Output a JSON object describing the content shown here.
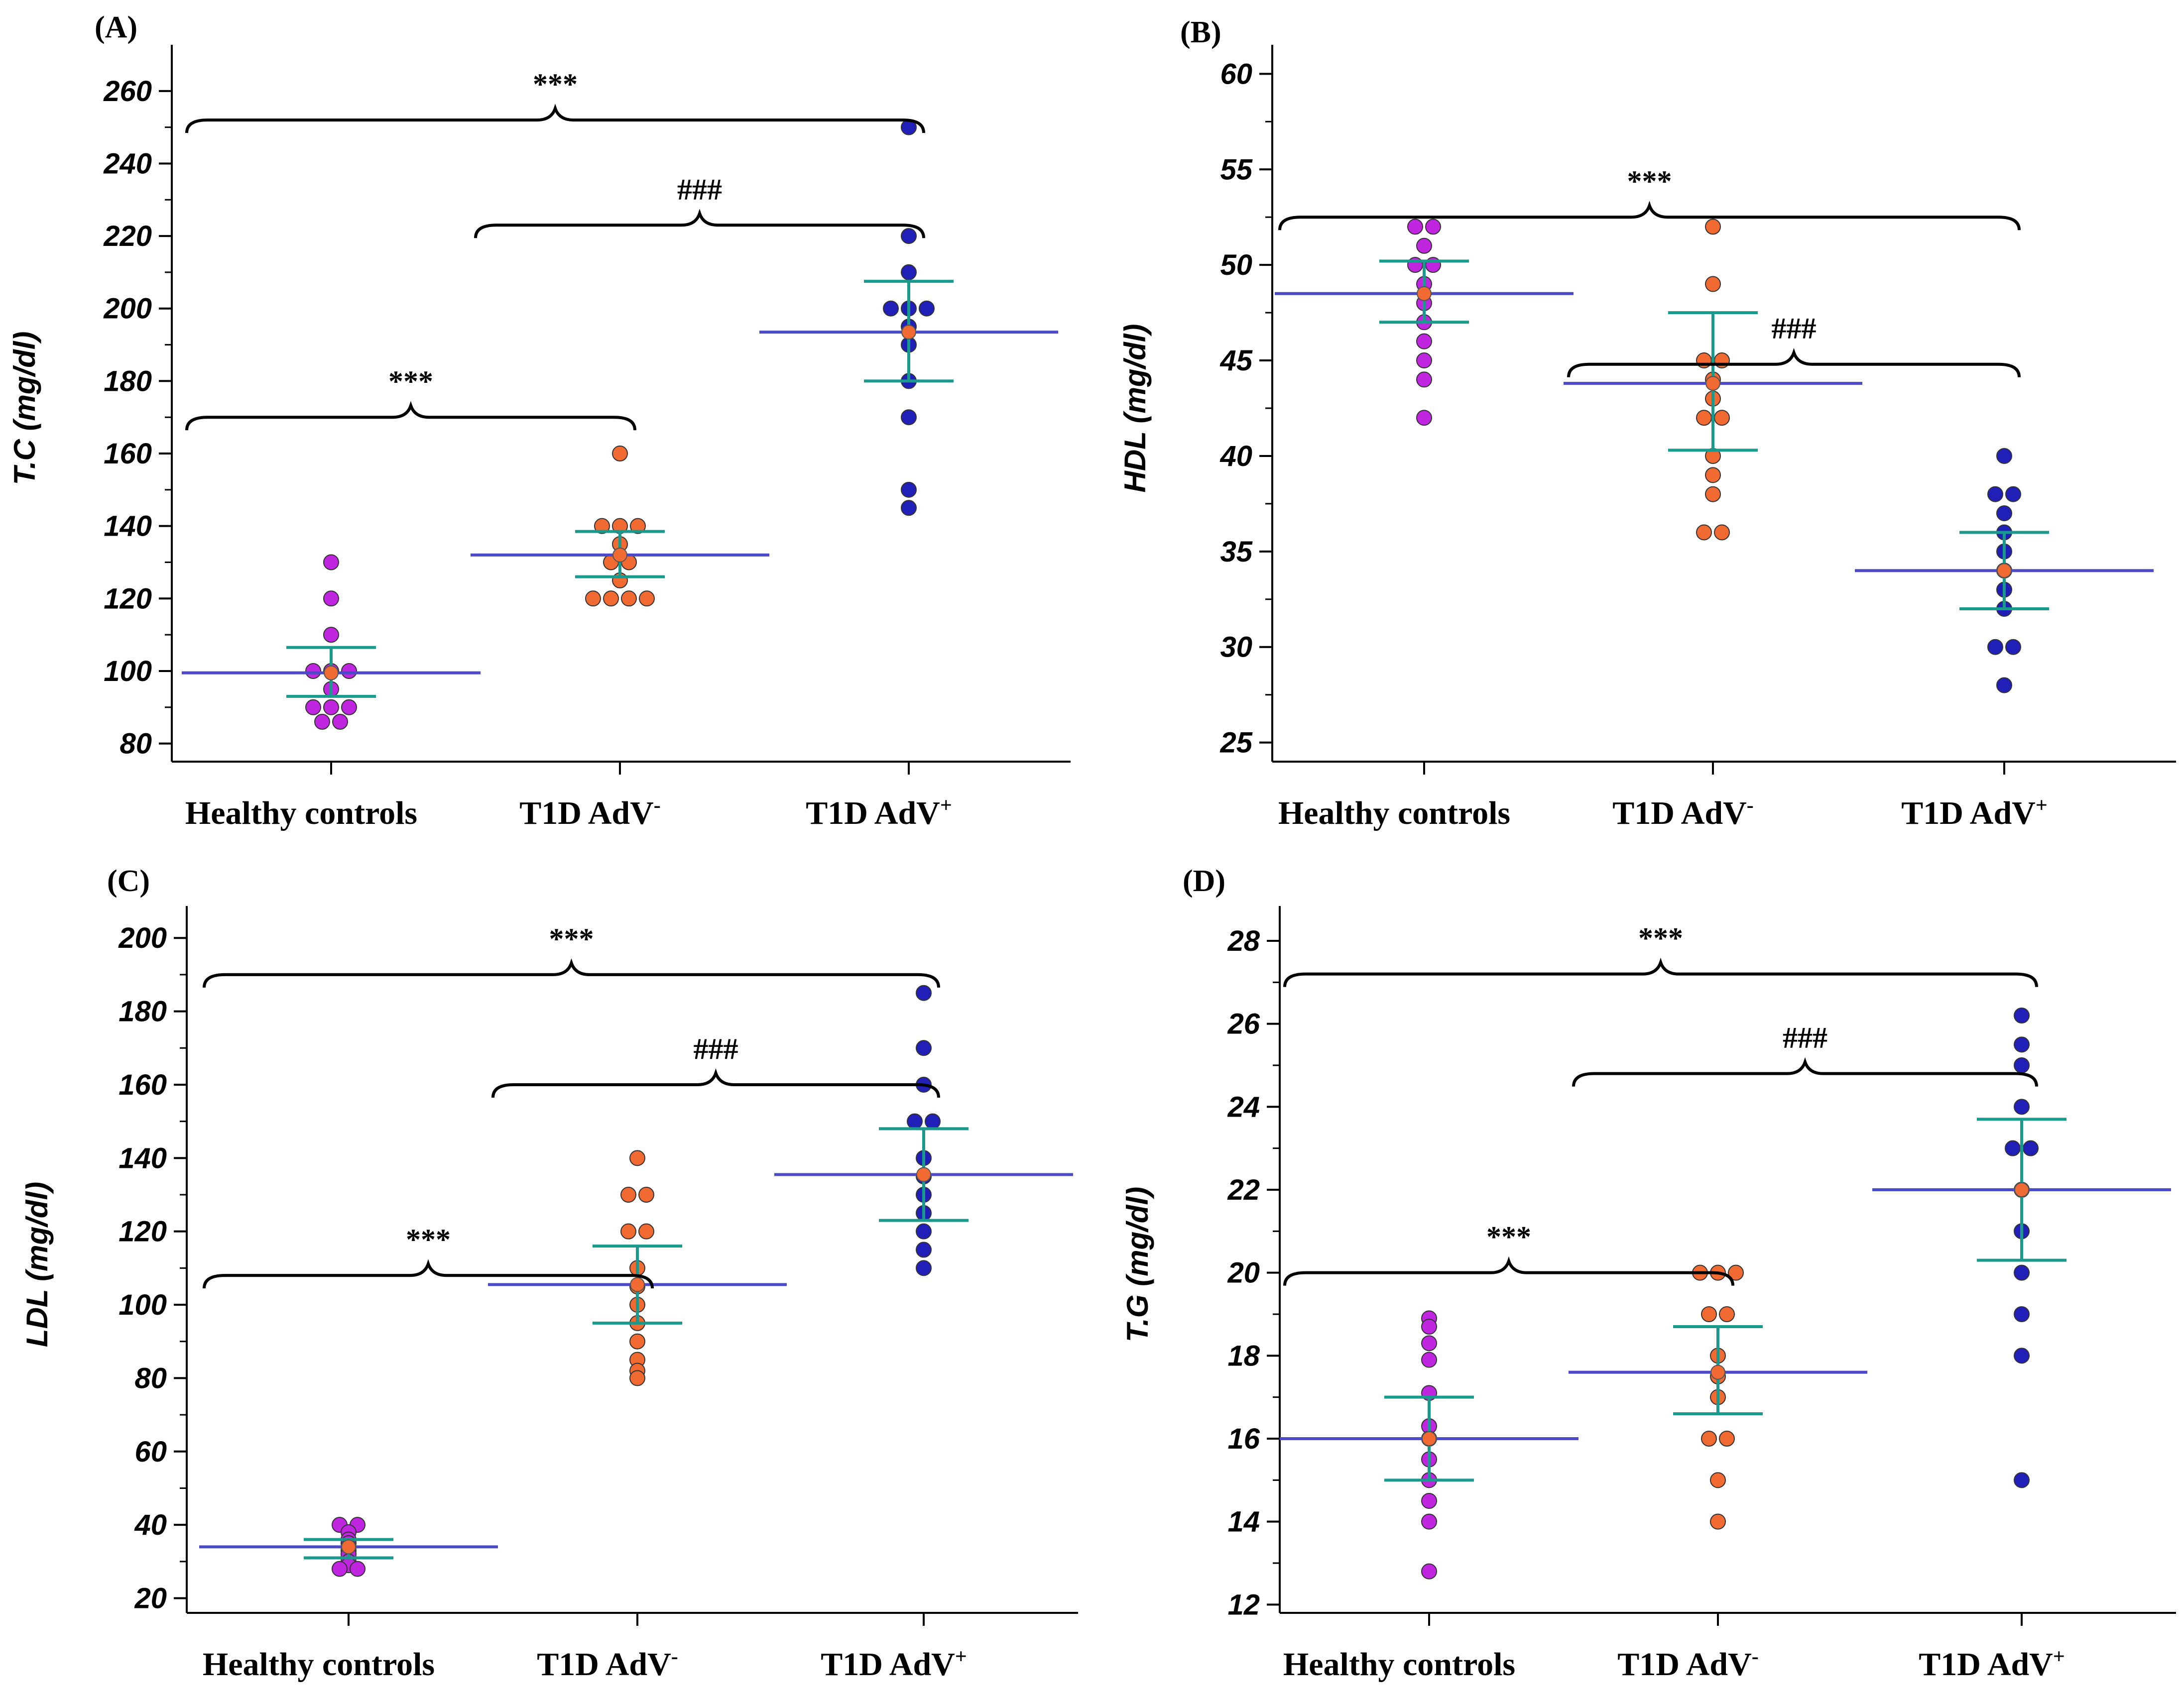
{
  "chart_data": [
    {
      "type": "scatter",
      "panel": "(A)",
      "ylabel": "T.C (mg/dl)",
      "ylim": [
        75,
        270
      ],
      "yticks": [
        80,
        100,
        120,
        140,
        160,
        180,
        200,
        220,
        240,
        260
      ],
      "categories": [
        "Healthy controls",
        "T1D AdV",
        "T1D AdV"
      ],
      "category_superscripts": [
        "",
        "-",
        "+"
      ],
      "groups": [
        {
          "name": "Healthy controls",
          "color": "#c026e0",
          "mean": 99.5,
          "err_low": 93,
          "err_high": 106.5,
          "points": [
            130,
            120,
            110,
            100,
            100,
            100,
            95,
            90,
            90,
            90,
            86,
            86
          ]
        },
        {
          "name": "T1D AdV-",
          "color": "#f06a32",
          "mean": 132,
          "err_low": 126,
          "err_high": 138.5,
          "points": [
            160,
            140,
            140,
            140,
            135,
            130,
            130,
            125,
            120,
            120,
            120,
            120
          ]
        },
        {
          "name": "T1D AdV+",
          "color": "#2020b8",
          "mean": 193.5,
          "err_low": 180,
          "err_high": 207.5,
          "points": [
            250,
            220,
            210,
            200,
            200,
            200,
            195,
            190,
            180,
            170,
            150,
            145
          ]
        }
      ],
      "significance": [
        {
          "from": 0,
          "to": 2,
          "level": 252,
          "label": "***"
        },
        {
          "from": 1,
          "to": 2,
          "level": 223,
          "label": "###"
        },
        {
          "from": 0,
          "to": 1,
          "level": 170,
          "label": "***"
        }
      ]
    },
    {
      "type": "scatter",
      "panel": "(B)",
      "ylabel": "HDL (mg/dl)",
      "ylim": [
        24,
        61
      ],
      "yticks": [
        25,
        30,
        35,
        40,
        45,
        50,
        55,
        60
      ],
      "categories": [
        "Healthy controls",
        "T1D AdV",
        "T1D AdV"
      ],
      "category_superscripts": [
        "",
        "-",
        "+"
      ],
      "groups": [
        {
          "name": "Healthy controls",
          "color": "#c026e0",
          "mean": 48.5,
          "err_low": 47,
          "err_high": 50.2,
          "points": [
            52,
            52,
            51,
            50,
            50,
            49,
            48,
            47,
            46,
            45,
            44,
            42
          ]
        },
        {
          "name": "T1D AdV-",
          "color": "#f06a32",
          "mean": 43.8,
          "err_low": 40.3,
          "err_high": 47.5,
          "points": [
            52,
            49,
            45,
            45,
            44,
            43,
            42,
            42,
            40,
            39,
            38,
            36,
            36
          ]
        },
        {
          "name": "T1D AdV+",
          "color": "#2020b8",
          "mean": 34,
          "err_low": 32,
          "err_high": 36,
          "points": [
            40,
            38,
            38,
            37,
            36,
            35,
            34,
            33,
            32,
            30,
            30,
            28
          ]
        }
      ],
      "significance": [
        {
          "from": 0,
          "to": 2,
          "level": 52.5,
          "label": "***"
        },
        {
          "from": 1,
          "to": 2,
          "level": 44.8,
          "label": "###"
        }
      ]
    },
    {
      "type": "scatter",
      "panel": "(C)",
      "ylabel": "LDL (mg/dl)",
      "ylim": [
        16,
        206
      ],
      "yticks": [
        20,
        40,
        60,
        80,
        100,
        120,
        140,
        160,
        180,
        200
      ],
      "categories": [
        "Healthy controls",
        "T1D AdV",
        "T1D AdV"
      ],
      "category_superscripts": [
        "",
        "-",
        "+"
      ],
      "groups": [
        {
          "name": "Healthy controls",
          "color": "#c026e0",
          "mean": 34,
          "err_low": 31,
          "err_high": 36,
          "points": [
            40,
            40,
            38,
            36,
            35,
            34,
            33,
            32,
            30,
            29,
            28,
            28
          ]
        },
        {
          "name": "T1D AdV-",
          "color": "#f06a32",
          "mean": 105.5,
          "err_low": 95,
          "err_high": 116,
          "points": [
            140,
            130,
            130,
            120,
            120,
            110,
            105,
            100,
            95,
            90,
            85,
            82,
            80
          ]
        },
        {
          "name": "T1D AdV+",
          "color": "#2020b8",
          "mean": 135.5,
          "err_low": 123,
          "err_high": 148,
          "points": [
            185,
            170,
            160,
            150,
            150,
            140,
            135,
            130,
            125,
            120,
            115,
            110
          ]
        }
      ],
      "significance": [
        {
          "from": 0,
          "to": 2,
          "level": 190,
          "label": "***"
        },
        {
          "from": 1,
          "to": 2,
          "level": 160,
          "label": "###"
        },
        {
          "from": 0,
          "to": 1,
          "level": 108,
          "label": "***"
        }
      ]
    },
    {
      "type": "scatter",
      "panel": "(D)",
      "ylabel": "T.G (mg/dl)",
      "ylim": [
        11.8,
        28.6
      ],
      "yticks": [
        12,
        14,
        16,
        18,
        20,
        22,
        24,
        26,
        28
      ],
      "categories": [
        "Healthy controls",
        "T1D AdV",
        "T1D AdV"
      ],
      "category_superscripts": [
        "",
        "-",
        "+"
      ],
      "groups": [
        {
          "name": "Healthy controls",
          "color": "#c026e0",
          "mean": 16,
          "err_low": 15,
          "err_high": 17,
          "points": [
            18.9,
            18.7,
            18.3,
            17.9,
            17.1,
            16.3,
            16,
            15.5,
            15,
            14.5,
            14,
            12.8
          ]
        },
        {
          "name": "T1D AdV-",
          "color": "#f06a32",
          "mean": 17.6,
          "err_low": 16.6,
          "err_high": 18.7,
          "points": [
            20,
            20,
            20,
            19,
            19,
            18,
            17.5,
            17,
            16,
            16,
            15,
            14
          ]
        },
        {
          "name": "T1D AdV+",
          "color": "#2020b8",
          "mean": 22,
          "err_low": 20.3,
          "err_high": 23.7,
          "points": [
            26.2,
            25.5,
            25,
            24,
            23,
            23,
            22,
            21,
            20,
            19,
            18,
            15
          ]
        }
      ],
      "significance": [
        {
          "from": 0,
          "to": 2,
          "level": 27.2,
          "label": "***"
        },
        {
          "from": 1,
          "to": 2,
          "level": 24.8,
          "label": "###"
        },
        {
          "from": 0,
          "to": 1,
          "level": 20,
          "label": "***"
        }
      ]
    }
  ]
}
